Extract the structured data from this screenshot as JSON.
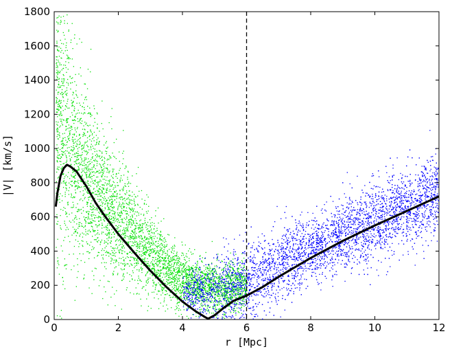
{
  "chart_data": {
    "type": "scatter",
    "title": "",
    "xlabel": "r [Mpc]",
    "ylabel": "|V| [km/s]",
    "xlim": [
      0,
      12
    ],
    "ylim": [
      0,
      1800
    ],
    "xticks": [
      0,
      2,
      4,
      6,
      8,
      10,
      12
    ],
    "xtick_labels": [
      "0",
      "2",
      "4",
      "6",
      "8",
      "10",
      "12"
    ],
    "yticks": [
      0,
      200,
      400,
      600,
      800,
      1000,
      1200,
      1400,
      1600,
      1800
    ],
    "ytick_labels": [
      "0",
      "200",
      "400",
      "600",
      "800",
      "1000",
      "1200",
      "1400",
      "1600",
      "1800"
    ],
    "grid": false,
    "vertical_line": {
      "x": 6,
      "style": "dashed",
      "color": "#000000"
    },
    "series": [
      {
        "kind": "scatter",
        "color": "#00e000",
        "trend": [
          [
            0.05,
            1250
          ],
          [
            0.3,
            1100
          ],
          [
            0.6,
            950
          ],
          [
            1.0,
            820
          ],
          [
            1.5,
            700
          ],
          [
            2.0,
            600
          ],
          [
            2.5,
            490
          ],
          [
            3.0,
            380
          ],
          [
            3.5,
            300
          ],
          [
            4.0,
            240
          ],
          [
            4.5,
            200
          ],
          [
            5.0,
            185
          ],
          [
            5.5,
            190
          ],
          [
            6.0,
            200
          ]
        ],
        "spread": [
          [
            0.05,
            420
          ],
          [
            0.5,
            330
          ],
          [
            1.0,
            260
          ],
          [
            1.5,
            210
          ],
          [
            2.0,
            170
          ],
          [
            3.0,
            110
          ],
          [
            4.0,
            80
          ],
          [
            5.0,
            70
          ],
          [
            6.0,
            70
          ]
        ],
        "points_count": 4500
      },
      {
        "kind": "scatter",
        "color": "#0000ff",
        "trend": [
          [
            4.0,
            150
          ],
          [
            5.0,
            180
          ],
          [
            5.5,
            210
          ],
          [
            6.0,
            230
          ],
          [
            6.5,
            270
          ],
          [
            7.0,
            320
          ],
          [
            8.0,
            410
          ],
          [
            9.0,
            490
          ],
          [
            10.0,
            580
          ],
          [
            11.0,
            660
          ],
          [
            12.0,
            740
          ]
        ],
        "spread": [
          [
            4.0,
            60
          ],
          [
            6.0,
            120
          ],
          [
            8.0,
            90
          ],
          [
            10.0,
            110
          ],
          [
            12.0,
            120
          ]
        ],
        "points_count": 5000
      },
      {
        "kind": "line",
        "color": "#000000",
        "x": [
          0.05,
          0.1,
          0.2,
          0.3,
          0.4,
          0.5,
          0.7,
          1.0,
          1.3,
          1.6,
          2.0,
          2.5,
          3.0,
          3.5,
          4.0,
          4.4,
          4.7,
          4.8,
          5.0,
          5.3,
          5.6,
          6.0,
          6.5,
          7.0,
          8.0,
          9.0,
          10.0,
          11.0,
          12.0
        ],
        "y": [
          660,
          740,
          840,
          885,
          905,
          895,
          865,
          780,
          680,
          600,
          500,
          390,
          285,
          190,
          105,
          50,
          15,
          5,
          25,
          70,
          110,
          140,
          190,
          250,
          360,
          460,
          550,
          635,
          720
        ]
      }
    ]
  }
}
